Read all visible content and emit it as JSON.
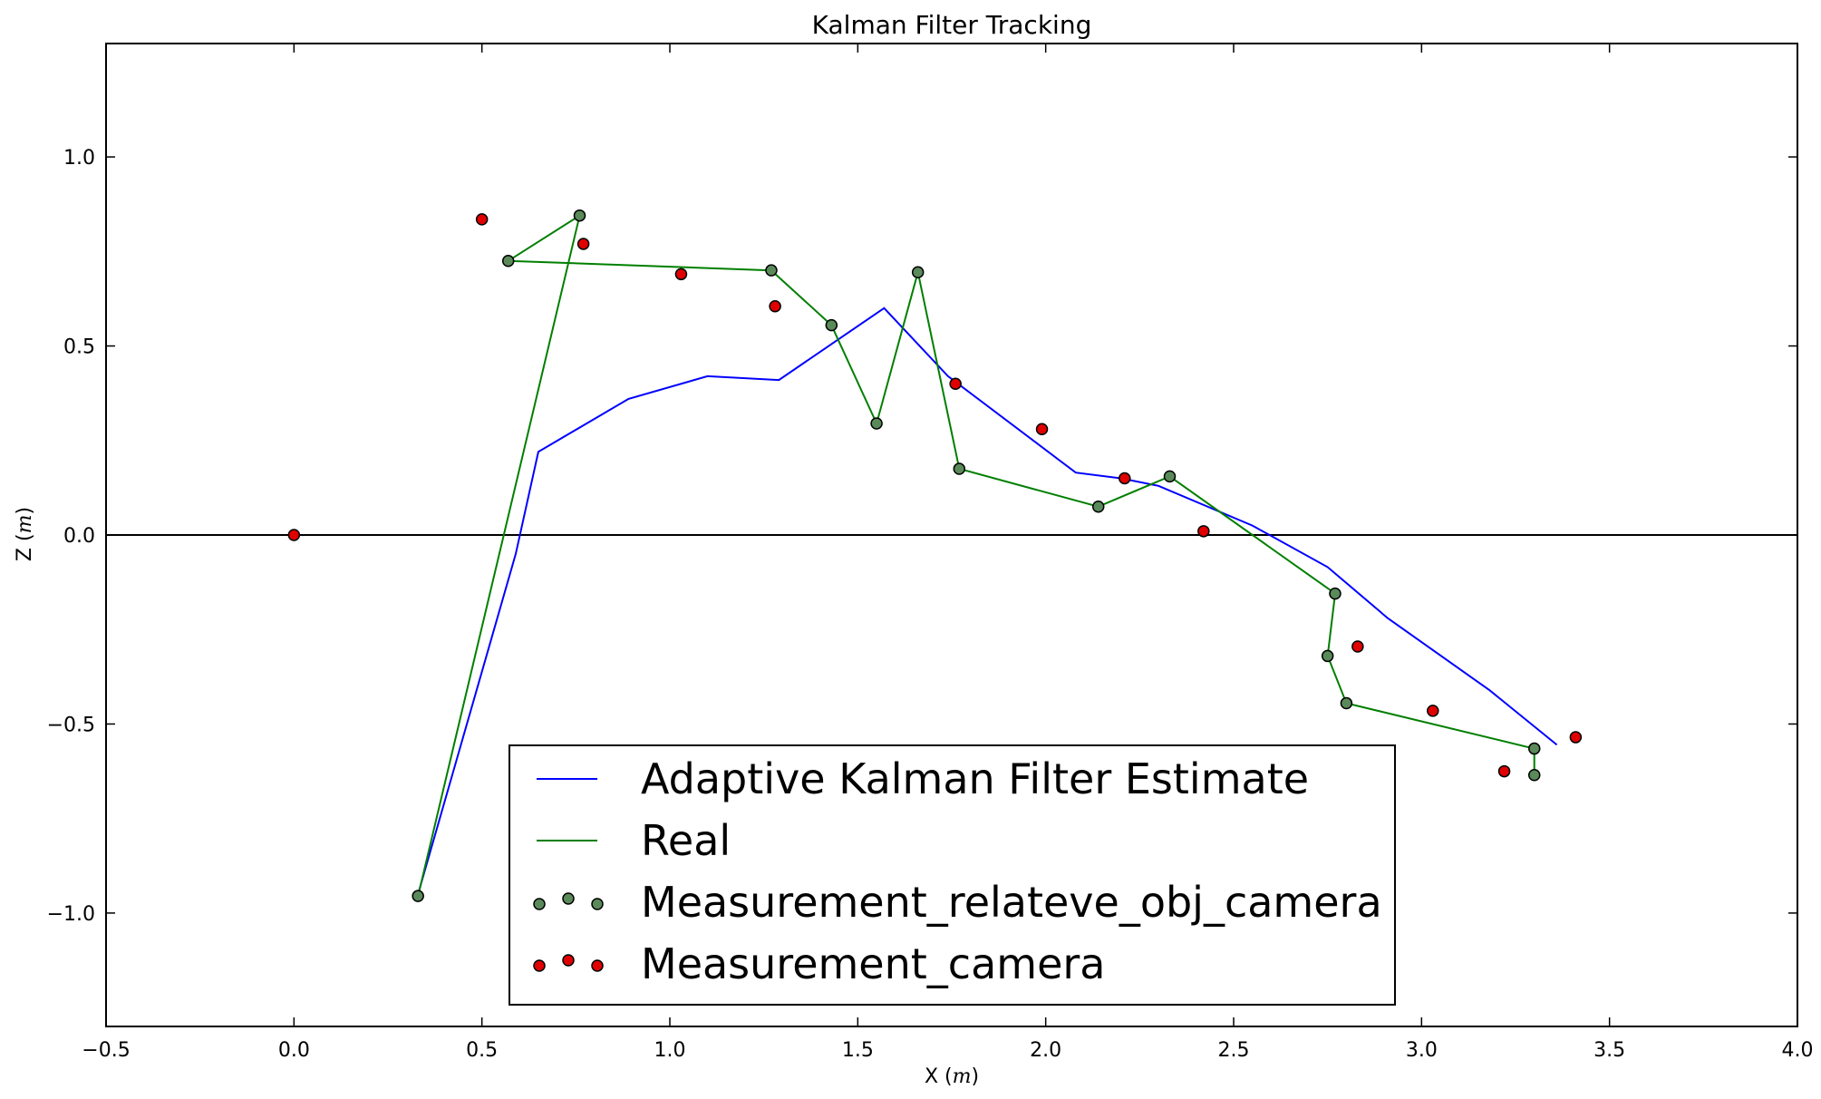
{
  "chart_data": {
    "type": "line",
    "title": "Kalman Filter Tracking",
    "xlabel": "X",
    "xlabel_unit": "m",
    "ylabel": "Z",
    "ylabel_unit": "m",
    "xlim": [
      -0.5,
      4.0
    ],
    "ylim": [
      -1.3,
      1.3
    ],
    "x_ticks": [
      -0.5,
      0.0,
      0.5,
      1.0,
      1.5,
      2.0,
      2.5,
      3.0,
      3.5,
      4.0
    ],
    "x_tick_labels": [
      "−0.5",
      "0.0",
      "0.5",
      "1.0",
      "1.5",
      "2.0",
      "2.5",
      "3.0",
      "3.5",
      "4.0"
    ],
    "y_ticks": [
      -1.0,
      -0.5,
      0.0,
      0.5,
      1.0
    ],
    "y_tick_labels": [
      "−1.0",
      "−0.5",
      "0.0",
      "0.5",
      "1.0"
    ],
    "zero_line": true,
    "legend_position": "lower-center",
    "series": [
      {
        "name": "Adaptive Kalman Filter Estimate",
        "kind": "line",
        "color": "#0000ff",
        "points": [
          [
            0.33,
            -0.95
          ],
          [
            0.59,
            -0.05
          ],
          [
            0.65,
            0.22
          ],
          [
            0.89,
            0.36
          ],
          [
            1.1,
            0.42
          ],
          [
            1.29,
            0.41
          ],
          [
            1.57,
            0.6
          ],
          [
            1.74,
            0.42
          ],
          [
            2.08,
            0.165
          ],
          [
            2.2,
            0.15
          ],
          [
            2.3,
            0.13
          ],
          [
            2.55,
            0.025
          ],
          [
            2.75,
            -0.085
          ],
          [
            2.91,
            -0.22
          ],
          [
            3.18,
            -0.41
          ],
          [
            3.36,
            -0.555
          ]
        ]
      },
      {
        "name": "Real",
        "kind": "line",
        "color": "#007f00",
        "points": [
          [
            0.33,
            -0.955
          ],
          [
            0.76,
            0.845
          ],
          [
            0.57,
            0.725
          ],
          [
            1.27,
            0.7
          ],
          [
            1.43,
            0.555
          ],
          [
            1.55,
            0.295
          ],
          [
            1.66,
            0.695
          ],
          [
            1.77,
            0.175
          ],
          [
            2.14,
            0.075
          ],
          [
            2.33,
            0.155
          ],
          [
            2.77,
            -0.155
          ],
          [
            2.75,
            -0.32
          ],
          [
            2.8,
            -0.445
          ],
          [
            3.3,
            -0.565
          ],
          [
            3.3,
            -0.635
          ]
        ]
      },
      {
        "name": "Measurement_relateve_obj_camera",
        "kind": "scatter",
        "color": "#5a8a5a",
        "points": [
          [
            0.33,
            -0.955
          ],
          [
            0.76,
            0.845
          ],
          [
            0.57,
            0.725
          ],
          [
            1.27,
            0.7
          ],
          [
            1.43,
            0.555
          ],
          [
            1.55,
            0.295
          ],
          [
            1.66,
            0.695
          ],
          [
            1.77,
            0.175
          ],
          [
            2.14,
            0.075
          ],
          [
            2.33,
            0.155
          ],
          [
            2.77,
            -0.155
          ],
          [
            2.75,
            -0.32
          ],
          [
            2.8,
            -0.445
          ],
          [
            3.3,
            -0.565
          ],
          [
            3.3,
            -0.635
          ]
        ]
      },
      {
        "name": "Measurement_camera",
        "kind": "scatter",
        "color": "#e00000",
        "points": [
          [
            0.0,
            0.0
          ],
          [
            0.5,
            0.835
          ],
          [
            0.77,
            0.77
          ],
          [
            1.03,
            0.69
          ],
          [
            1.28,
            0.605
          ],
          [
            1.76,
            0.4
          ],
          [
            1.99,
            0.28
          ],
          [
            2.21,
            0.15
          ],
          [
            2.42,
            0.01
          ],
          [
            2.83,
            -0.295
          ],
          [
            3.03,
            -0.465
          ],
          [
            3.22,
            -0.625
          ],
          [
            3.41,
            -0.535
          ]
        ]
      }
    ]
  }
}
